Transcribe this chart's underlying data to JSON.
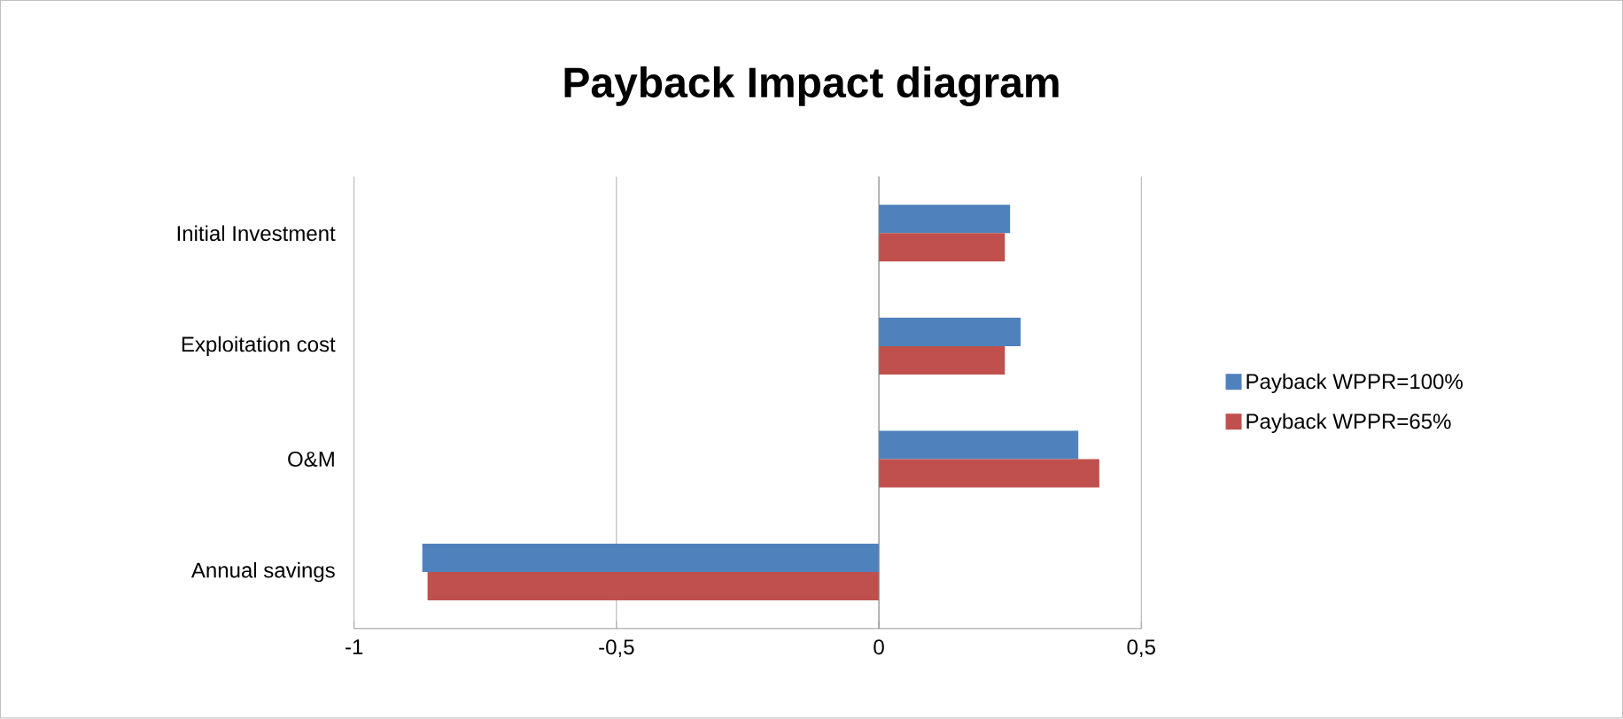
{
  "chart_data": {
    "type": "bar",
    "orientation": "horizontal",
    "title": "Payback Impact diagram",
    "categories": [
      "Initial Investment",
      "Exploitation cost",
      "O&M",
      "Annual savings"
    ],
    "series": [
      {
        "name": "Payback WPPR=100%",
        "color": "#4f81bd",
        "values": [
          0.25,
          0.27,
          0.38,
          -0.87
        ]
      },
      {
        "name": "Payback WPPR=65%",
        "color": "#c0504d",
        "values": [
          0.24,
          0.24,
          0.42,
          -0.86
        ]
      }
    ],
    "xlim": [
      -1,
      0.5
    ],
    "xticks": [
      {
        "value": -1,
        "label": "-1"
      },
      {
        "value": -0.5,
        "label": "-0,5"
      },
      {
        "value": 0,
        "label": "0"
      },
      {
        "value": 0.5,
        "label": "0,5"
      }
    ],
    "grid": "x",
    "legend": "right"
  }
}
